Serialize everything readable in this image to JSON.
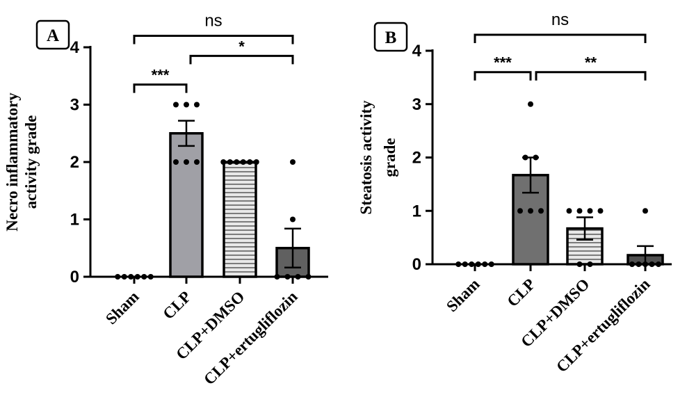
{
  "chart_data": [
    {
      "type": "bar",
      "panel_label": "A",
      "ylabel_lines": [
        "Necro inflammatory",
        "activity grade"
      ],
      "categories": [
        "Sham",
        "CLP",
        "CLP+DMSO",
        "CLP+ertugliflozin"
      ],
      "values": [
        0,
        2.5,
        2.0,
        0.5
      ],
      "sem": [
        0,
        0.22,
        0,
        0.34
      ],
      "points": [
        [
          0,
          0,
          0,
          0,
          0,
          0
        ],
        [
          3,
          3,
          3,
          2,
          2,
          2
        ],
        [
          2,
          2,
          2,
          2,
          2,
          2
        ],
        [
          0,
          0,
          0,
          1,
          2,
          0
        ]
      ],
      "ylim": [
        0,
        4
      ],
      "yticks": [
        0,
        1,
        2,
        3,
        4
      ],
      "ytick_labels": [
        "0",
        "1",
        "2",
        "3",
        "4"
      ],
      "bar_colors": [
        "#ffffff",
        "#a0a0a6",
        "#e8e8e8",
        "#606060"
      ],
      "bar_patterns": [
        "none",
        "none",
        "horizontal-lines",
        "none"
      ],
      "significance": [
        {
          "from": 0,
          "to": 3,
          "label": "ns",
          "level": 4.2
        },
        {
          "from": 1,
          "to": 3,
          "label": "*",
          "level": 3.85
        },
        {
          "from": 0,
          "to": 1,
          "label": "***",
          "level": 3.35
        }
      ]
    },
    {
      "type": "bar",
      "panel_label": "B",
      "ylabel_lines": [
        "Steatosis activity",
        "grade"
      ],
      "categories": [
        "Sham",
        "CLP",
        "CLP+DMSO",
        "CLP+ertugliflozin"
      ],
      "values": [
        0,
        1.67,
        0.67,
        0.17
      ],
      "sem": [
        0,
        0.33,
        0.21,
        0.17
      ],
      "points": [
        [
          0,
          0,
          0,
          0,
          0,
          0
        ],
        [
          3,
          2,
          2,
          1,
          1,
          1
        ],
        [
          1,
          1,
          1,
          1,
          0,
          0
        ],
        [
          1,
          0,
          0,
          0,
          0,
          0
        ]
      ],
      "ylim": [
        0,
        4
      ],
      "yticks": [
        0,
        1,
        2,
        3,
        4
      ],
      "ytick_labels": [
        "0",
        "1",
        "2",
        "3",
        "4"
      ],
      "bar_colors": [
        "#ffffff",
        "#707070",
        "#e8e8e8",
        "#505050"
      ],
      "bar_patterns": [
        "none",
        "none",
        "horizontal-lines",
        "none"
      ],
      "significance": [
        {
          "from": 0,
          "to": 3,
          "label": "ns",
          "level": 4.3
        },
        {
          "from": 0,
          "to": 1,
          "label": "***",
          "level": 3.6
        },
        {
          "from": 1,
          "to": 3,
          "label": "**",
          "level": 3.6
        }
      ]
    }
  ]
}
